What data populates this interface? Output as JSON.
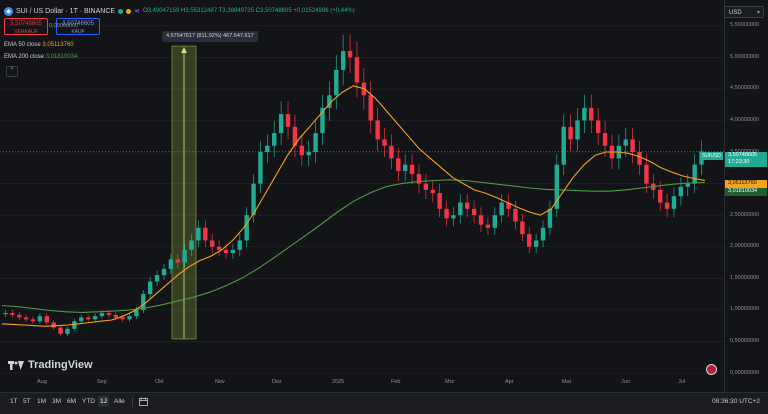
{
  "header": {
    "symbol": "SUI / US Dollar · 1T · BINANCE",
    "ohlc": {
      "open_label": "O",
      "open": "3,49047159",
      "high_label": "H",
      "high": "3,55312487",
      "low_label": "T",
      "low": "3,38849735",
      "close_label": "C",
      "close": "3,50748605",
      "change": "+0,01524996 (+0,44%)"
    },
    "sell_box": {
      "price": "3,50748605",
      "label": "VERKAUF"
    },
    "spread": "0,00000000",
    "buy_box": {
      "price": "3,50748605",
      "label": "KAUF"
    }
  },
  "indicators": [
    {
      "label": "EMA 50 close",
      "value": "3,05113760"
    },
    {
      "label": "EMA 200 close",
      "value": "3,01810034"
    }
  ],
  "collapse_symbol": "^",
  "measure_tooltip": "4,67647617 (811,92%) 467.647.617",
  "currency_selector": "USD",
  "price_labels": [
    "5,50000000",
    "5,00000000",
    "4,50000000",
    "4,00000000",
    "3,50000000",
    "3,00000000",
    "2,50000000",
    "2,00000000",
    "1,50000000",
    "1,00000000",
    "0,50000000",
    "0,00000000"
  ],
  "current_price": {
    "symbol_tag": "SUIUSD",
    "price": "3,50748605",
    "countdown": "17:23:30"
  },
  "ema50_tag": "3,05113760",
  "ema200_tag": "3,01810034",
  "time_labels": [
    "Aug",
    "Sep",
    "Okt",
    "Nov",
    "Dez",
    "2025",
    "Feb",
    "Mrz",
    "Apr",
    "Mai",
    "Jun",
    "Jul"
  ],
  "logo_text": "TradingView",
  "timeframes": [
    "1T",
    "5T",
    "1M",
    "3M",
    "6M",
    "YTD",
    "1J",
    "Alle"
  ],
  "active_timeframe": "1J",
  "clock": "08:36:30 UTC+2",
  "colors": {
    "up": "#22ab94",
    "down": "#f23645",
    "ema50": "#f7a21b",
    "ema200": "#4e9a45",
    "bg": "#131417"
  },
  "chart_data": {
    "type": "candlestick",
    "title": "SUI / US Dollar · 1T · BINANCE",
    "ylim": [
      0,
      5.75
    ],
    "ticks_y": [
      0,
      0.5,
      1,
      1.5,
      2,
      2.5,
      3,
      3.5,
      4,
      4.5,
      5,
      5.5
    ],
    "series": [
      {
        "name": "SUI/USD",
        "close": [
          0.95,
          0.92,
          0.88,
          0.85,
          0.82,
          0.9,
          0.8,
          0.72,
          0.62,
          0.7,
          0.82,
          0.88,
          0.85,
          0.9,
          0.95,
          0.92,
          0.88,
          0.85,
          0.9,
          1.0,
          1.25,
          1.45,
          1.55,
          1.65,
          1.8,
          1.75,
          1.95,
          2.1,
          2.3,
          2.1,
          2.0,
          1.95,
          1.9,
          1.95,
          2.1,
          2.5,
          3.0,
          3.5,
          3.6,
          3.8,
          4.1,
          3.9,
          3.6,
          3.45,
          3.5,
          3.8,
          4.2,
          4.4,
          4.8,
          5.1,
          5.0,
          4.6,
          4.4,
          4.0,
          3.7,
          3.6,
          3.4,
          3.2,
          3.3,
          3.15,
          3.0,
          2.9,
          2.85,
          2.6,
          2.45,
          2.5,
          2.7,
          2.6,
          2.5,
          2.35,
          2.3,
          2.5,
          2.7,
          2.6,
          2.4,
          2.2,
          2.0,
          2.1,
          2.3,
          2.6,
          3.3,
          3.9,
          3.7,
          4.0,
          4.2,
          4.0,
          3.8,
          3.6,
          3.4,
          3.6,
          3.7,
          3.5,
          3.3,
          3.0,
          2.9,
          2.7,
          2.6,
          2.8,
          2.95,
          3.0,
          3.3,
          3.5077
        ]
      },
      {
        "name": "EMA 50",
        "values": [
          0.78,
          0.77,
          0.76,
          0.75,
          0.74,
          0.75,
          0.76,
          0.78,
          0.8,
          0.82,
          0.84,
          0.9,
          0.98,
          1.1,
          1.25,
          1.4,
          1.55,
          1.68,
          1.78,
          1.85,
          1.95,
          2.1,
          2.3,
          2.55,
          2.85,
          3.15,
          3.45,
          3.7,
          3.9,
          4.1,
          4.3,
          4.45,
          4.55,
          4.5,
          4.35,
          4.15,
          3.95,
          3.75,
          3.55,
          3.4,
          3.25,
          3.1,
          3.0,
          2.9,
          2.85,
          2.78,
          2.7,
          2.62,
          2.55,
          2.5,
          2.6,
          2.85,
          3.1,
          3.3,
          3.45,
          3.5,
          3.5,
          3.48,
          3.43,
          3.35,
          3.25,
          3.18,
          3.12,
          3.08,
          3.05114
        ]
      },
      {
        "name": "EMA 200",
        "values": [
          1.07,
          1.05,
          1.02,
          0.99,
          0.97,
          0.96,
          0.97,
          0.98,
          1.0,
          1.03,
          1.08,
          1.14,
          1.2,
          1.28,
          1.38,
          1.5,
          1.65,
          1.82,
          2.0,
          2.18,
          2.36,
          2.55,
          2.72,
          2.85,
          2.95,
          3.0,
          3.03,
          3.05,
          3.06,
          3.05,
          3.02,
          2.99,
          2.96,
          2.93,
          2.91,
          2.9,
          2.89,
          2.88,
          2.88,
          2.9,
          2.93,
          2.96,
          2.99,
          3.01,
          3.0181
        ]
      }
    ],
    "legend": [
      "EMA 50 close",
      "EMA 200 close"
    ]
  }
}
